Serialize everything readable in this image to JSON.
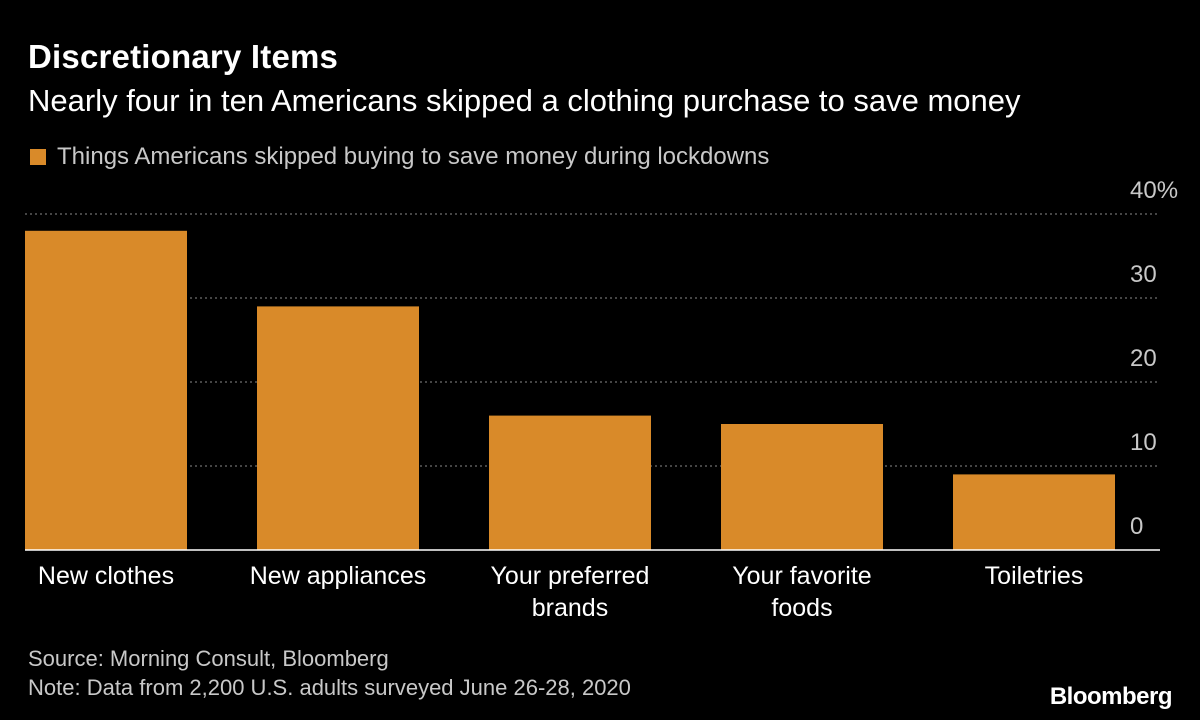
{
  "header": {
    "title": "Discretionary Items",
    "subtitle": "Nearly four in ten Americans skipped a clothing purchase to save money"
  },
  "legend": {
    "label": "Things Americans skipped buying to save money during lockdowns"
  },
  "footer": {
    "source": "Source: Morning Consult, Bloomberg",
    "note": "Note: Data from 2,200 U.S. adults surveyed June 26-28, 2020",
    "logo": "Bloomberg"
  },
  "colors": {
    "bar": "#d98a29",
    "background": "#000000",
    "grid": "#8a8a8a"
  },
  "chart_data": {
    "type": "bar",
    "categories": [
      [
        "New clothes"
      ],
      [
        "New appliances"
      ],
      [
        "Your preferred",
        "brands"
      ],
      [
        "Your favorite",
        "foods"
      ],
      [
        "Toiletries"
      ]
    ],
    "series": [
      {
        "name": "Things Americans skipped buying to save money during lockdowns",
        "values": [
          38,
          29,
          16,
          15,
          9
        ]
      }
    ],
    "yticks": [
      "0",
      "10",
      "20",
      "30",
      "40%"
    ],
    "ytick_values": [
      0,
      10,
      20,
      30,
      40
    ],
    "ylim": [
      0,
      40
    ],
    "grid": true,
    "gridlines_at": [
      10,
      20,
      30,
      40
    ],
    "y_axis_side": "right",
    "legend_position": "top-left"
  }
}
